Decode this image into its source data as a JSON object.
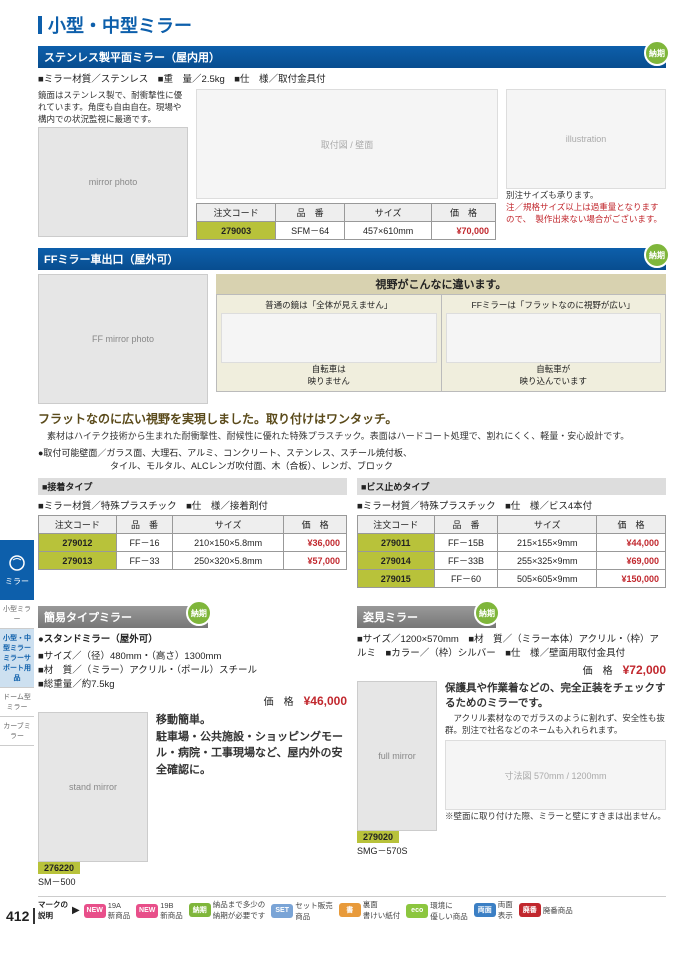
{
  "page": {
    "title": "小型・中型ミラー",
    "number": "412"
  },
  "sidebar": {
    "icon_label": "ミラー",
    "items": [
      {
        "label": "小型ミラー",
        "active": false
      },
      {
        "label": "小型・中型ミラー\nミラーサポート用品",
        "active": true
      },
      {
        "label": "ドーム型ミラー",
        "active": false
      },
      {
        "label": "カーブミラー",
        "active": false
      }
    ]
  },
  "sec1": {
    "title": "ステンレス製平面ミラー（屋内用）",
    "badge": "納期",
    "specs": [
      {
        "k": "ミラー材質",
        "v": "／ステンレス"
      },
      {
        "k": "重　量",
        "v": "／2.5kg"
      },
      {
        "k": "仕　様",
        "v": "／取付金具付"
      }
    ],
    "blurb": "鏡面はステンレス製で、耐衝撃性に優れています。角度も自由自在。現場や構内での状況監視に最適です。",
    "table": {
      "headers": [
        "注文コード",
        "品　番",
        "サイズ",
        "価　格"
      ],
      "rows": [
        {
          "code": "279003",
          "model": "SFM－64",
          "size": "457×610mm",
          "price": "¥70,000"
        }
      ]
    },
    "note1": "別注サイズも承ります。",
    "note2": "注／規格サイズ以上は過重量となりますので、　製作出来ない場合がございます。"
  },
  "sec2": {
    "title": "FFミラー車出口（屋外可）",
    "badge": "納期",
    "vision": {
      "header": "視野がこんなに違います。",
      "left_top": "普通の鏡は「全体が見えません」",
      "right_top": "FFミラーは「フラットなのに視野が広い」",
      "left_cap": "自転車は\n映りません",
      "right_cap": "自転車が\n映り込んでいます"
    },
    "heading": "フラットなのに広い視野を実現しました。取り付けはワンタッチ。",
    "desc": "　素材はハイテク技術から生まれた耐衝撃性、耐候性に優れた特殊プラスチック。表面はハードコート処理で、割れにくく、軽量・安心設計です。",
    "bullet": "●取付可能壁面／ガラス面、大理石、アルミ、コンクリート、ステンレス、スチール焼付板、\n　　　　　　　　タイル、モルタル、ALCレンガ吹付面、木（合板）、レンガ、ブロック",
    "left": {
      "sub": "■接着タイプ",
      "specs": [
        {
          "k": "ミラー材質",
          "v": "／特殊プラスチック"
        },
        {
          "k": "仕　様",
          "v": "／接着剤付"
        }
      ],
      "headers": [
        "注文コード",
        "品　番",
        "サイズ",
        "価　格"
      ],
      "rows": [
        {
          "code": "279012",
          "model": "FF－16",
          "size": "210×150×5.8mm",
          "price": "¥36,000"
        },
        {
          "code": "279013",
          "model": "FF－33",
          "size": "250×320×5.8mm",
          "price": "¥57,000"
        }
      ]
    },
    "right": {
      "sub": "■ビス止めタイプ",
      "specs": [
        {
          "k": "ミラー材質",
          "v": "／特殊プラスチック"
        },
        {
          "k": "仕　様",
          "v": "／ビス4本付"
        }
      ],
      "headers": [
        "注文コード",
        "品　番",
        "サイズ",
        "価　格"
      ],
      "rows": [
        {
          "code": "279011",
          "model": "FF－15B",
          "size": "215×155×9mm",
          "price": "¥44,000"
        },
        {
          "code": "279014",
          "model": "FF－33B",
          "size": "255×325×9mm",
          "price": "¥69,000"
        },
        {
          "code": "279015",
          "model": "FF－60",
          "size": "505×605×9mm",
          "price": "¥150,000"
        }
      ]
    }
  },
  "sec3": {
    "title": "簡易タイプミラー",
    "badge": "納期",
    "sub": "●スタンドミラー（屋外可）",
    "specs": [
      {
        "k": "サイズ",
        "v": "／（径）480mm・（高さ）1300mm"
      },
      {
        "k": "材　質",
        "v": "／（ミラー）アクリル・（ポール）スチール"
      },
      {
        "k": "総重量",
        "v": "／約7.5kg"
      }
    ],
    "price_label": "価　格",
    "price": "¥46,000",
    "text": "移動簡単。\n駐車場・公共施設・ショッピングモール・病院・工事現場など、屋内外の安全確認に。",
    "code": "276220",
    "model": "SM－500"
  },
  "sec4": {
    "title": "姿見ミラー",
    "badge": "納期",
    "specs": [
      {
        "k": "サイズ",
        "v": "／1200×570mm"
      },
      {
        "k": "材　質",
        "v": "／（ミラー本体）アクリル・（枠）アルミ"
      },
      {
        "k": "カラー",
        "v": "／（枠）シルバー"
      },
      {
        "k": "仕　様",
        "v": "／壁面用取付金具付"
      }
    ],
    "price_label": "価　格",
    "price": "¥72,000",
    "text": "保護具や作業着などの、完全正装をチェックするためのミラーです。",
    "desc": "　アクリル素材なのでガラスのように割れず、安全性も抜群。別注で社名などのネームも入れられます。",
    "code": "279020",
    "model": "SMG－570S",
    "note": "※壁面に取り付けた際、ミラーと壁にすきまは出ません。"
  },
  "footer": {
    "lead": "マークの\n説明",
    "items": [
      {
        "bg": "#e84f8a",
        "tag": "NEW",
        "text": "19A\n新商品"
      },
      {
        "bg": "#e84f8a",
        "tag": "NEW",
        "text": "19B\n新商品"
      },
      {
        "bg": "#7fb63b",
        "tag": "納期",
        "text": "納品まで多少の\n納期が必要です"
      },
      {
        "bg": "#7aa4d6",
        "tag": "SET",
        "text": "セット販売\n商品"
      },
      {
        "bg": "#e89a3a",
        "tag": "書",
        "text": "裏面\n書けい紙付"
      },
      {
        "bg": "#8cc63f",
        "tag": "eco",
        "text": "環境に\n優しい商品"
      },
      {
        "bg": "#3b7fc4",
        "tag": "両面",
        "text": "両面\n表示"
      },
      {
        "bg": "#c1272d",
        "tag": "廃番",
        "text": "廃番商品"
      }
    ]
  },
  "colors": {
    "brand": "#0d5fab",
    "accent": "#b8c23a",
    "price": "#c1272d",
    "badge": "#7fb63b"
  }
}
